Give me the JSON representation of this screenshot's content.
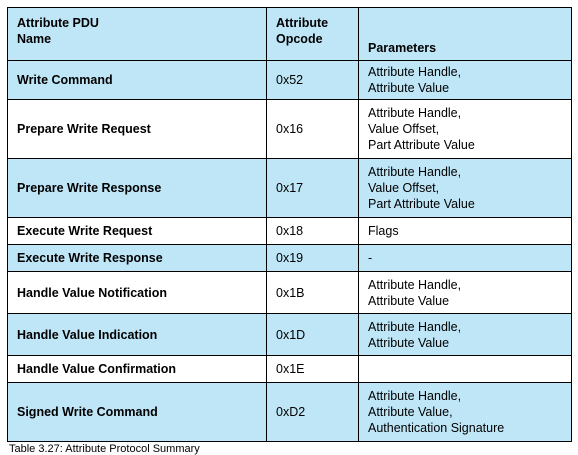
{
  "table": {
    "headers": {
      "name": [
        "Attribute PDU",
        "Name"
      ],
      "opcode": [
        "Attribute",
        "Opcode"
      ],
      "parameters": [
        "Parameters"
      ]
    },
    "rows": [
      {
        "name": "Write Command",
        "opcode": "0x52",
        "parameters": [
          "Attribute Handle,",
          "Attribute Value"
        ],
        "shaded": true
      },
      {
        "name": "Prepare Write Request",
        "opcode": "0x16",
        "parameters": [
          "Attribute Handle,",
          "Value Offset,",
          "Part Attribute Value"
        ],
        "shaded": false
      },
      {
        "name": "Prepare Write Response",
        "opcode": "0x17",
        "parameters": [
          "Attribute Handle,",
          "Value Offset,",
          "Part Attribute Value"
        ],
        "shaded": true
      },
      {
        "name": "Execute Write Request",
        "opcode": "0x18",
        "parameters": [
          "Flags"
        ],
        "shaded": false
      },
      {
        "name": "Execute Write Response",
        "opcode": "0x19",
        "parameters": [
          "-"
        ],
        "shaded": true
      },
      {
        "name": "Handle Value Notification",
        "opcode": "0x1B",
        "parameters": [
          "Attribute Handle,",
          "Attribute Value"
        ],
        "shaded": false
      },
      {
        "name": "Handle Value Indication",
        "opcode": "0x1D",
        "parameters": [
          "Attribute Handle,",
          "Attribute Value"
        ],
        "shaded": true
      },
      {
        "name": "Handle Value Confirmation",
        "opcode": "0x1E",
        "parameters": [],
        "shaded": false
      },
      {
        "name": "Signed Write Command",
        "opcode": "0xD2",
        "parameters": [
          "Attribute Handle,",
          "Attribute Value,",
          "Authentication Signature"
        ],
        "shaded": true
      }
    ]
  },
  "caption": "Table 3.27: Attribute Protocol Summary",
  "colors": {
    "shade": "#bfe6f7",
    "border": "#000000"
  }
}
